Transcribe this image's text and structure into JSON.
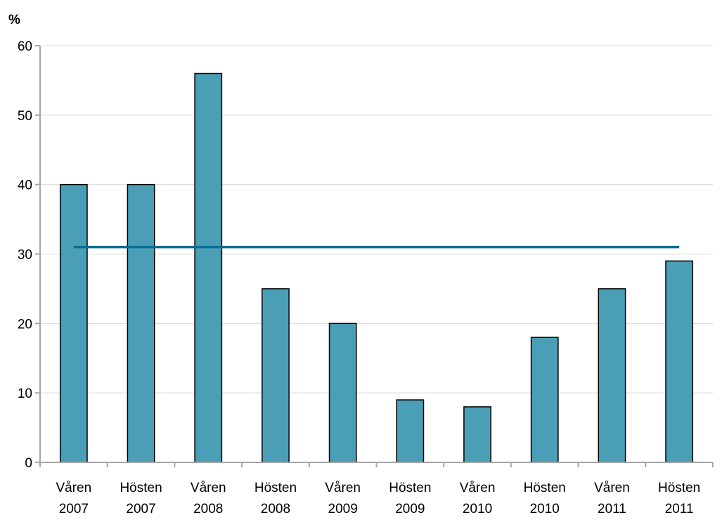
{
  "chart_data": {
    "type": "bar",
    "unit_label": "%",
    "categories": [
      [
        "Våren",
        "2007"
      ],
      [
        "Hösten",
        "2007"
      ],
      [
        "Våren",
        "2008"
      ],
      [
        "Hösten",
        "2008"
      ],
      [
        "Våren",
        "2009"
      ],
      [
        "Hösten",
        "2009"
      ],
      [
        "Våren",
        "2010"
      ],
      [
        "Hösten",
        "2010"
      ],
      [
        "Våren",
        "2011"
      ],
      [
        "Hösten",
        "2011"
      ]
    ],
    "series": [
      {
        "type": "bar",
        "values": [
          40,
          40,
          56,
          25,
          20,
          9,
          8,
          18,
          25,
          29
        ]
      },
      {
        "type": "line",
        "values": [
          31,
          31,
          31,
          31,
          31,
          31,
          31,
          31,
          31,
          31
        ]
      }
    ],
    "ylim": [
      0,
      60
    ],
    "yticks": [
      0,
      10,
      20,
      30,
      40,
      50,
      60
    ],
    "grid": true,
    "colors": {
      "bar_fill": "#4a9fb7",
      "bar_stroke": "#000000",
      "line": "#0a6d94",
      "grid": "#d9d9d9",
      "axis": "#a6a6a6"
    }
  }
}
